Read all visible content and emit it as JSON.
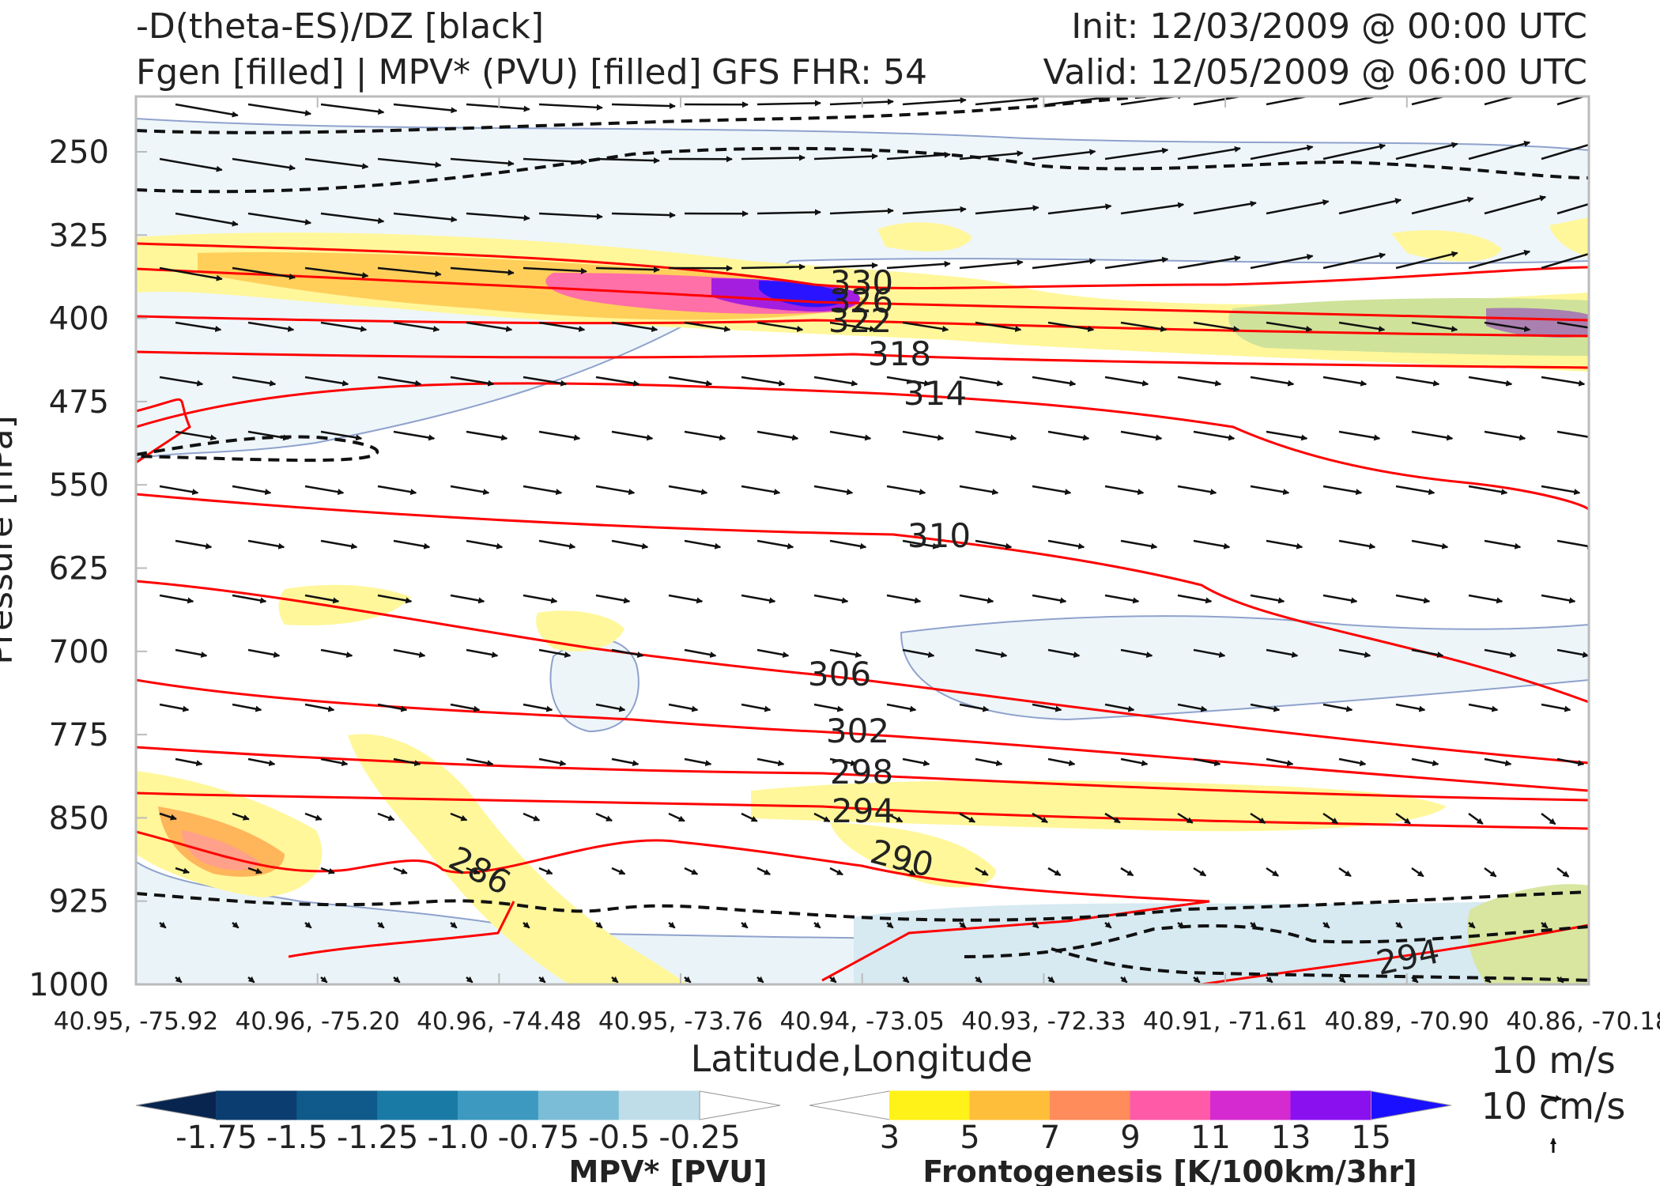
{
  "header": {
    "left_line1": "-D(theta-ES)/DZ [black]",
    "left_line2": "Fgen [filled] | MPV* (PVU) [filled]",
    "center": "GFS FHR: 54",
    "right_line1": "Init: 12/03/2009 @ 00:00 UTC",
    "right_line2": "Valid: 12/05/2009 @ 06:00 UTC"
  },
  "chart_data": {
    "type": "cross-section",
    "xlabel": "Latitude,Longitude",
    "ylabel": "Pressure [hPa]",
    "x_ticks": [
      "40.95, -75.92",
      "40.96, -75.20",
      "40.96, -74.48",
      "40.95, -73.76",
      "40.94, -73.05",
      "40.93, -72.33",
      "40.91, -71.61",
      "40.89, -70.90",
      "40.86, -70.18"
    ],
    "y_ticks": [
      250,
      325,
      400,
      475,
      550,
      625,
      700,
      775,
      850,
      925,
      1000
    ],
    "ylim": [
      1000,
      200
    ],
    "theta_e_contours": {
      "color": "#ff0000",
      "labels": [
        {
          "value": "330",
          "x": 0.5,
          "p": 370
        },
        {
          "value": "326",
          "x": 0.51,
          "p": 385
        },
        {
          "value": "322",
          "x": 0.5,
          "p": 400
        },
        {
          "value": "318",
          "x": 0.52,
          "p": 432
        },
        {
          "value": "314",
          "x": 0.55,
          "p": 467
        },
        {
          "value": "310",
          "x": 0.55,
          "p": 598
        },
        {
          "value": "306",
          "x": 0.48,
          "p": 717
        },
        {
          "value": "302",
          "x": 0.5,
          "p": 768
        },
        {
          "value": "298",
          "x": 0.5,
          "p": 803
        },
        {
          "value": "294",
          "x": 0.5,
          "p": 838
        },
        {
          "value": "290",
          "x": 0.52,
          "p": 883
        },
        {
          "value": "286",
          "x": 0.24,
          "p": 905
        },
        {
          "value": "294",
          "x": 0.88,
          "p": 972
        }
      ]
    },
    "mpv_colorbar": {
      "label": "MPV* [PVU]",
      "ticks": [
        "-1.75",
        "-1.5",
        "-1.25",
        "-1.0",
        "-0.75",
        "-0.5",
        "-0.25"
      ],
      "colors": [
        "#08254f",
        "#0b3d70",
        "#0f5a8a",
        "#1a7aa6",
        "#3d99c0",
        "#7bbdd6",
        "#bfdde9",
        "#ffffff"
      ]
    },
    "fgen_colorbar": {
      "label": "Frontogenesis [K/100km/3hr]",
      "ticks": [
        "3",
        "5",
        "7",
        "9",
        "11",
        "13",
        "15"
      ],
      "colors": [
        "#ffffff",
        "#fff218",
        "#ffbe3a",
        "#ff8c5a",
        "#ff5aa8",
        "#d52ad0",
        "#8a10f0",
        "#1a10ff"
      ]
    },
    "vector_key": {
      "line1": "10 m/s",
      "line2": "10 cm/s"
    }
  }
}
